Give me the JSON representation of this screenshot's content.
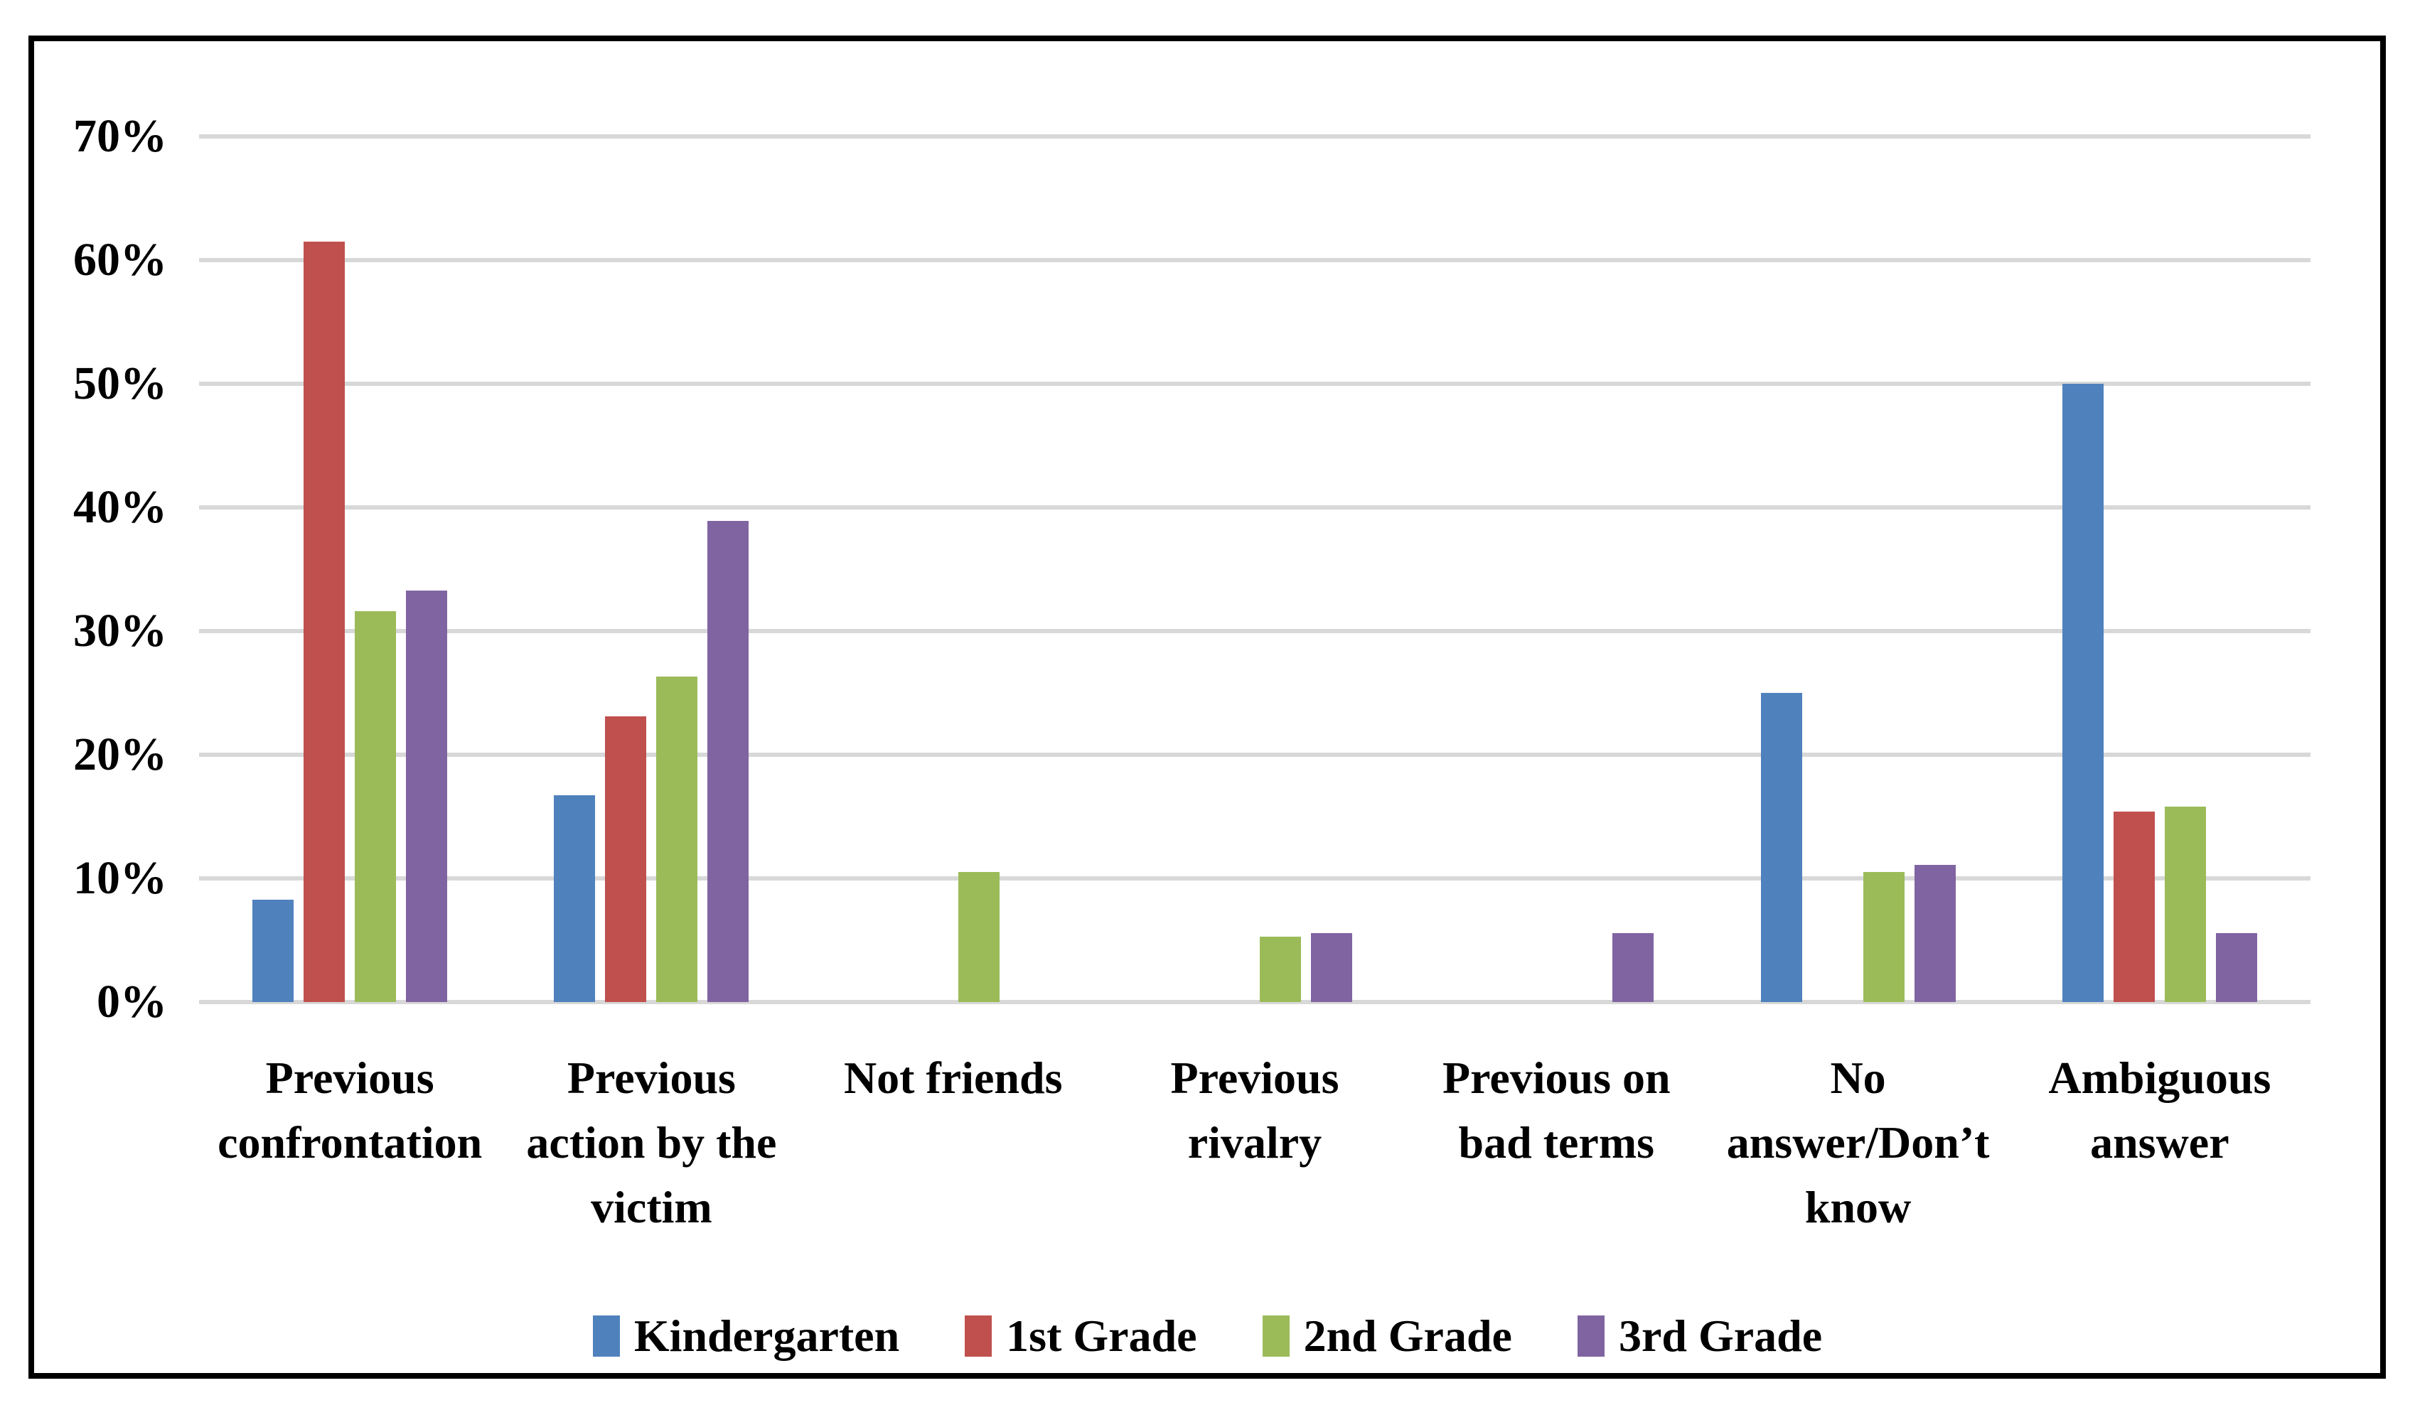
{
  "figure": {
    "background": "#FFFFFF",
    "border_color": "#000000"
  },
  "chart_data": {
    "type": "bar",
    "title": "",
    "xlabel": "",
    "ylabel": "",
    "categories": [
      "Previous confrontation",
      "Previous action by the victim",
      "Not friends",
      "Previous rivalry",
      "Previous on bad terms",
      "No answer/Don’t know",
      "Ambiguous answer"
    ],
    "category_labels": [
      "Previous\nconfrontation",
      "Previous\naction by the\nvictim",
      "Not friends",
      "Previous\nrivalry",
      "Previous on\nbad terms",
      "No\nanswer/Don’t\nknow",
      "Ambiguous\nanswer"
    ],
    "series": [
      {
        "name": "Kindergarten",
        "color": "#4F81BD",
        "values": [
          8.3,
          16.7,
          0,
          0,
          0,
          25.0,
          50.0
        ]
      },
      {
        "name": "1st Grade",
        "color": "#C0504D",
        "values": [
          61.5,
          23.1,
          0,
          0,
          0,
          0,
          15.4
        ]
      },
      {
        "name": "2nd Grade",
        "color": "#9BBB59",
        "values": [
          31.6,
          26.3,
          10.5,
          5.3,
          0,
          10.5,
          15.8
        ]
      },
      {
        "name": "3rd Grade",
        "color": "#8064A2",
        "values": [
          33.3,
          38.9,
          0,
          5.6,
          5.6,
          11.1,
          5.6
        ]
      }
    ],
    "ylim": [
      0,
      70
    ],
    "ytick_step": 10,
    "ytick_labels": [
      "0%",
      "10%",
      "20%",
      "30%",
      "40%",
      "50%",
      "60%",
      "70%"
    ],
    "grid": true,
    "gridline_color": "#D8D8D8",
    "axis_text_color": "#000000",
    "legend_position": "bottom"
  }
}
